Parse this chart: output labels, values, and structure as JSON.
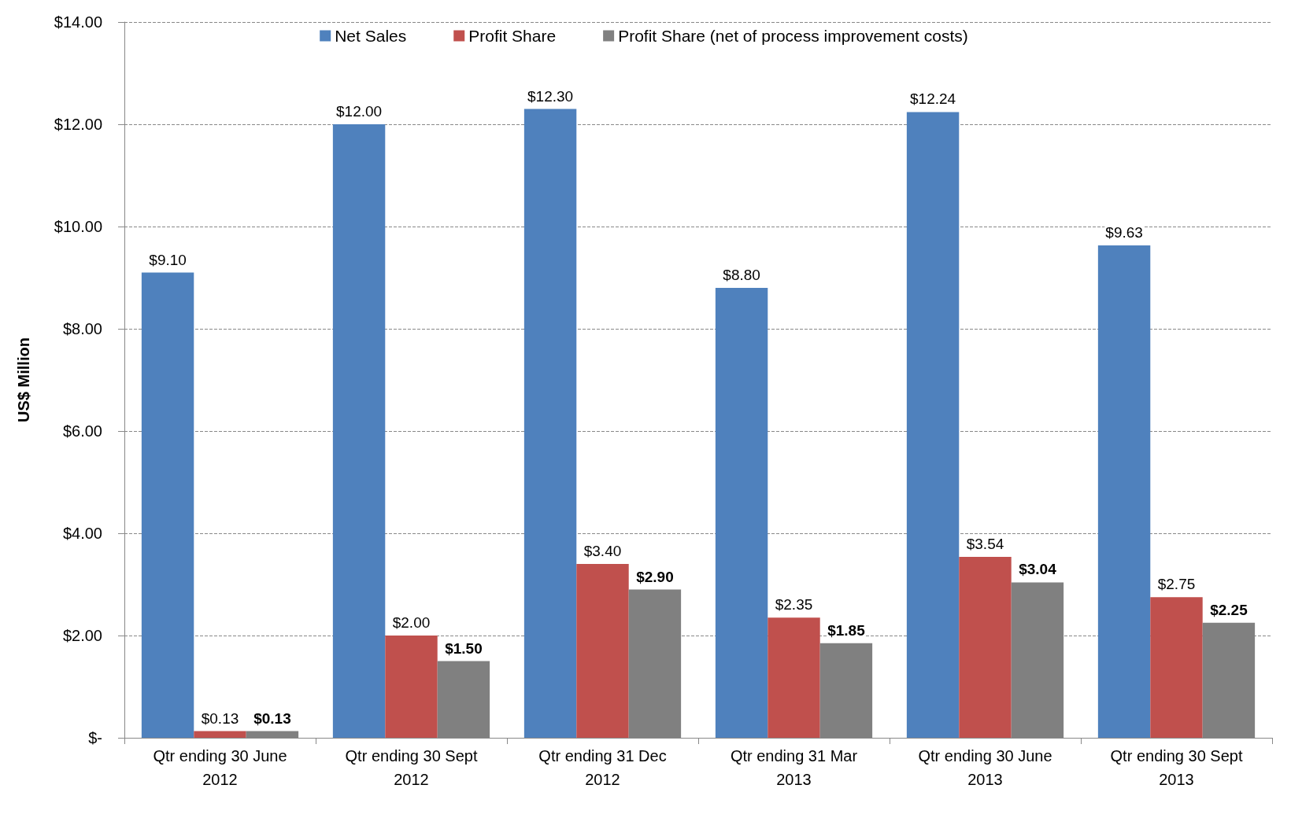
{
  "chart_data": {
    "type": "bar",
    "ylabel": "US$ Million",
    "categories": [
      "Qtr ending 30 June\n2012",
      "Qtr ending 30 Sept\n2012",
      "Qtr ending 31 Dec\n2012",
      "Qtr ending 31 Mar\n2013",
      "Qtr ending 30 June\n2013",
      "Qtr ending 30 Sept\n2013"
    ],
    "series": [
      {
        "name": "Net Sales",
        "color": "#4f81bd",
        "values": [
          9.1,
          12.0,
          12.3,
          8.8,
          12.24,
          9.63
        ],
        "value_labels": [
          "$9.10",
          "$12.00",
          "$12.30",
          "$8.80",
          "$12.24",
          "$9.63"
        ]
      },
      {
        "name": "Profit Share",
        "color": "#c0504d",
        "values": [
          0.13,
          2.0,
          3.4,
          2.35,
          3.54,
          2.75
        ],
        "value_labels": [
          "$0.13",
          "$2.00",
          "$3.40",
          "$2.35",
          "$3.54",
          "$2.75"
        ]
      },
      {
        "name": "Profit Share (net of process improvement costs)",
        "color": "#808080",
        "values": [
          0.13,
          1.5,
          2.9,
          1.85,
          3.04,
          2.25
        ],
        "value_labels": [
          "$0.13",
          "$1.50",
          "$2.90",
          "$1.85",
          "$3.04",
          "$2.25"
        ]
      }
    ],
    "ylim": [
      0,
      14
    ],
    "yticks": [
      {
        "value": 0,
        "label": "$-"
      },
      {
        "value": 2,
        "label": "$2.00"
      },
      {
        "value": 4,
        "label": "$4.00"
      },
      {
        "value": 6,
        "label": "$6.00"
      },
      {
        "value": 8,
        "label": "$8.00"
      },
      {
        "value": 10,
        "label": "$10.00"
      },
      {
        "value": 12,
        "label": "$12.00"
      },
      {
        "value": 14,
        "label": "$14.00"
      }
    ],
    "grid": "y",
    "legend": "top"
  }
}
